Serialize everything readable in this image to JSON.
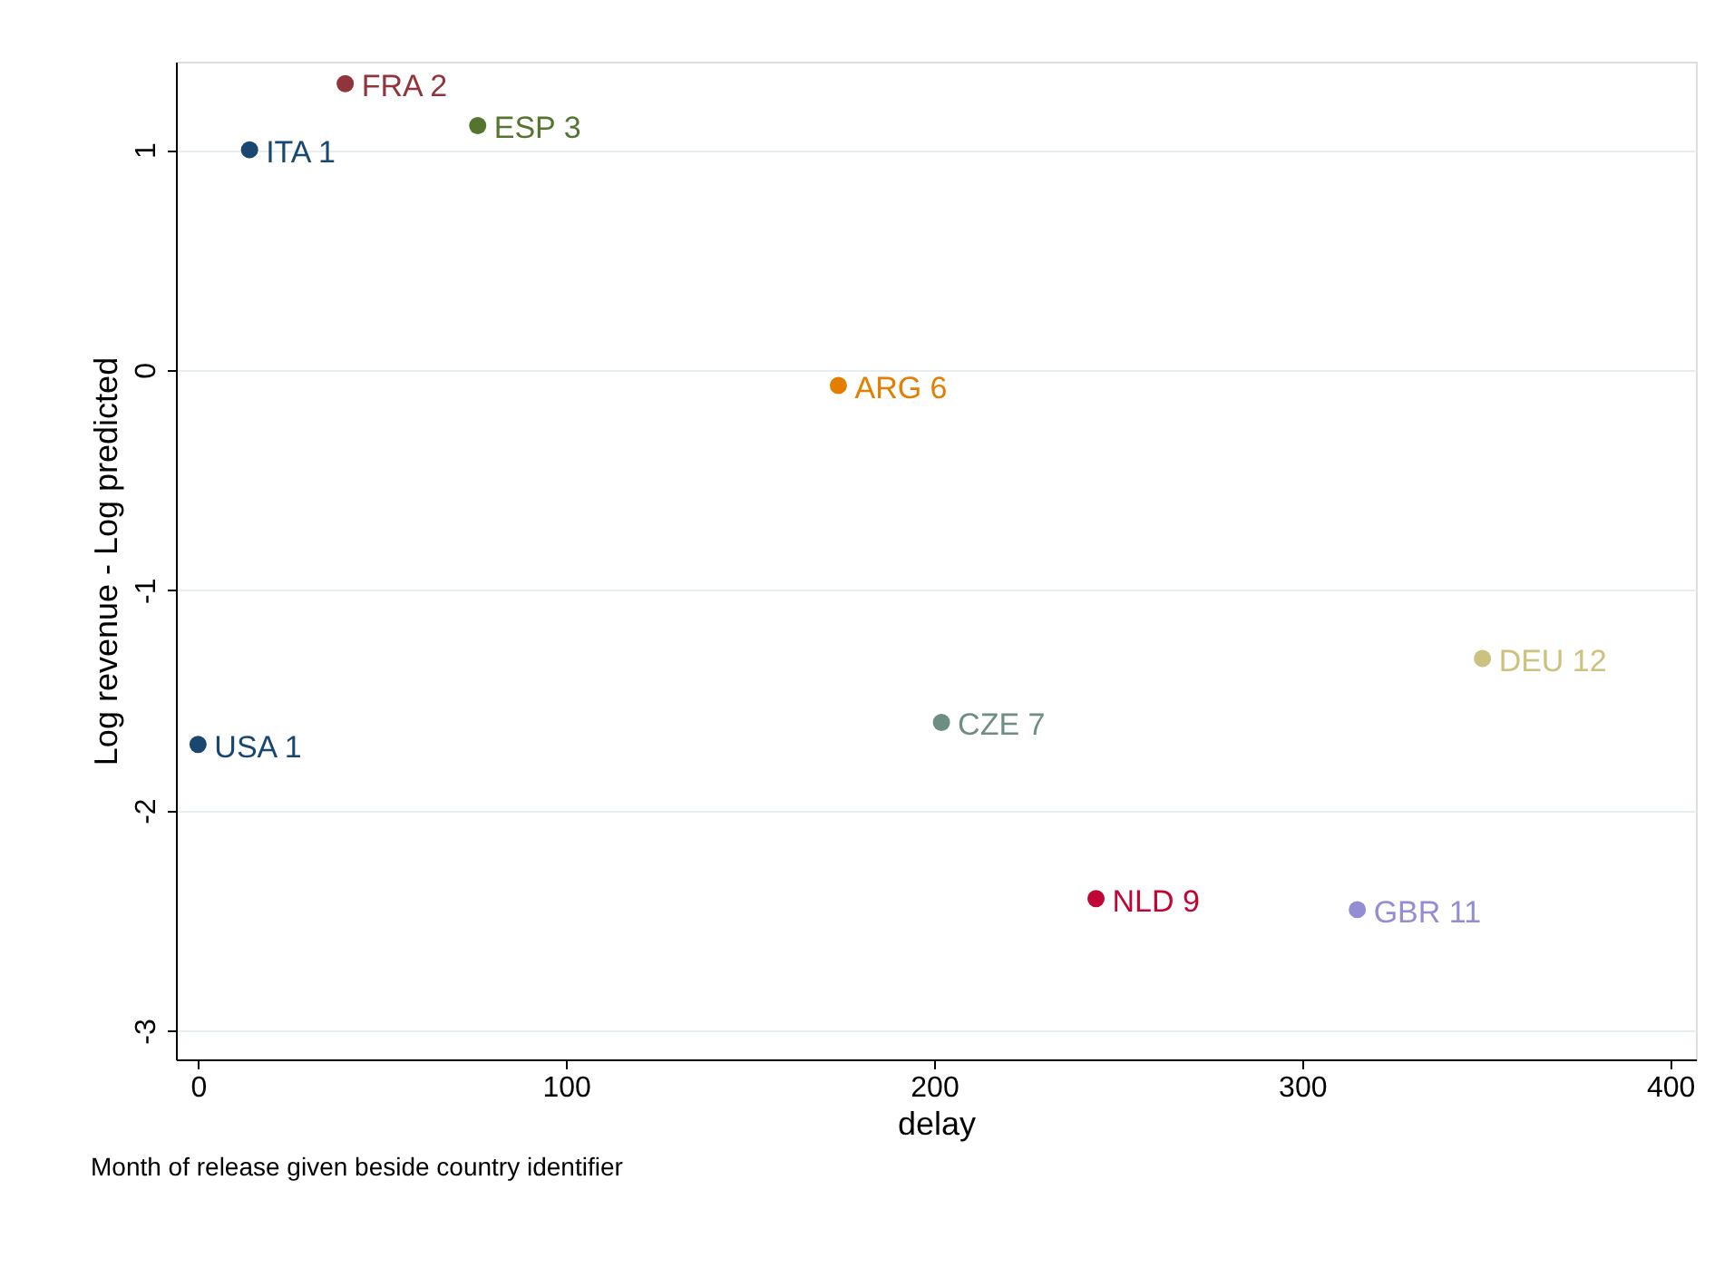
{
  "chart_data": {
    "type": "scatter",
    "xlabel": "delay",
    "ylabel": "Log revenue - Log predicted",
    "x": [
      0,
      14,
      40,
      76,
      174,
      202,
      244,
      315,
      349
    ],
    "values": [
      -1.7,
      1.0,
      1.3,
      1.11,
      -0.07,
      -1.6,
      -2.4,
      -2.45,
      -1.31
    ],
    "colors": [
      "#1a476f",
      "#1a476f",
      "#90353b",
      "#55752f",
      "#e37e00",
      "#6e8e84",
      "#c10534",
      "#938dd2",
      "#cac27e"
    ],
    "xlim": [
      -6,
      407
    ],
    "xticks": [
      0,
      100,
      200,
      300,
      400
    ],
    "ylim": [
      -3.13,
      1.4
    ],
    "yticks": [
      -3,
      -2,
      -1,
      0,
      1
    ],
    "grid": "y",
    "legend": false,
    "marker": "circle",
    "annotations": [
      {
        "text": "USA 1",
        "x": 0,
        "y": -1.7
      },
      {
        "text": "ITA 1",
        "x": 14,
        "y": 1.0
      },
      {
        "text": "FRA 2",
        "x": 40,
        "y": 1.3
      },
      {
        "text": "ESP 3",
        "x": 76,
        "y": 1.11
      },
      {
        "text": "ARG 6",
        "x": 174,
        "y": -0.07
      },
      {
        "text": "CZE 7",
        "x": 202,
        "y": -1.6
      },
      {
        "text": "NLD 9",
        "x": 244,
        "y": -2.4
      },
      {
        "text": "GBR 11",
        "x": 315,
        "y": -2.45
      },
      {
        "text": "DEU 12",
        "x": 349,
        "y": -1.31
      },
      "Month of release given beside country identifier"
    ]
  }
}
